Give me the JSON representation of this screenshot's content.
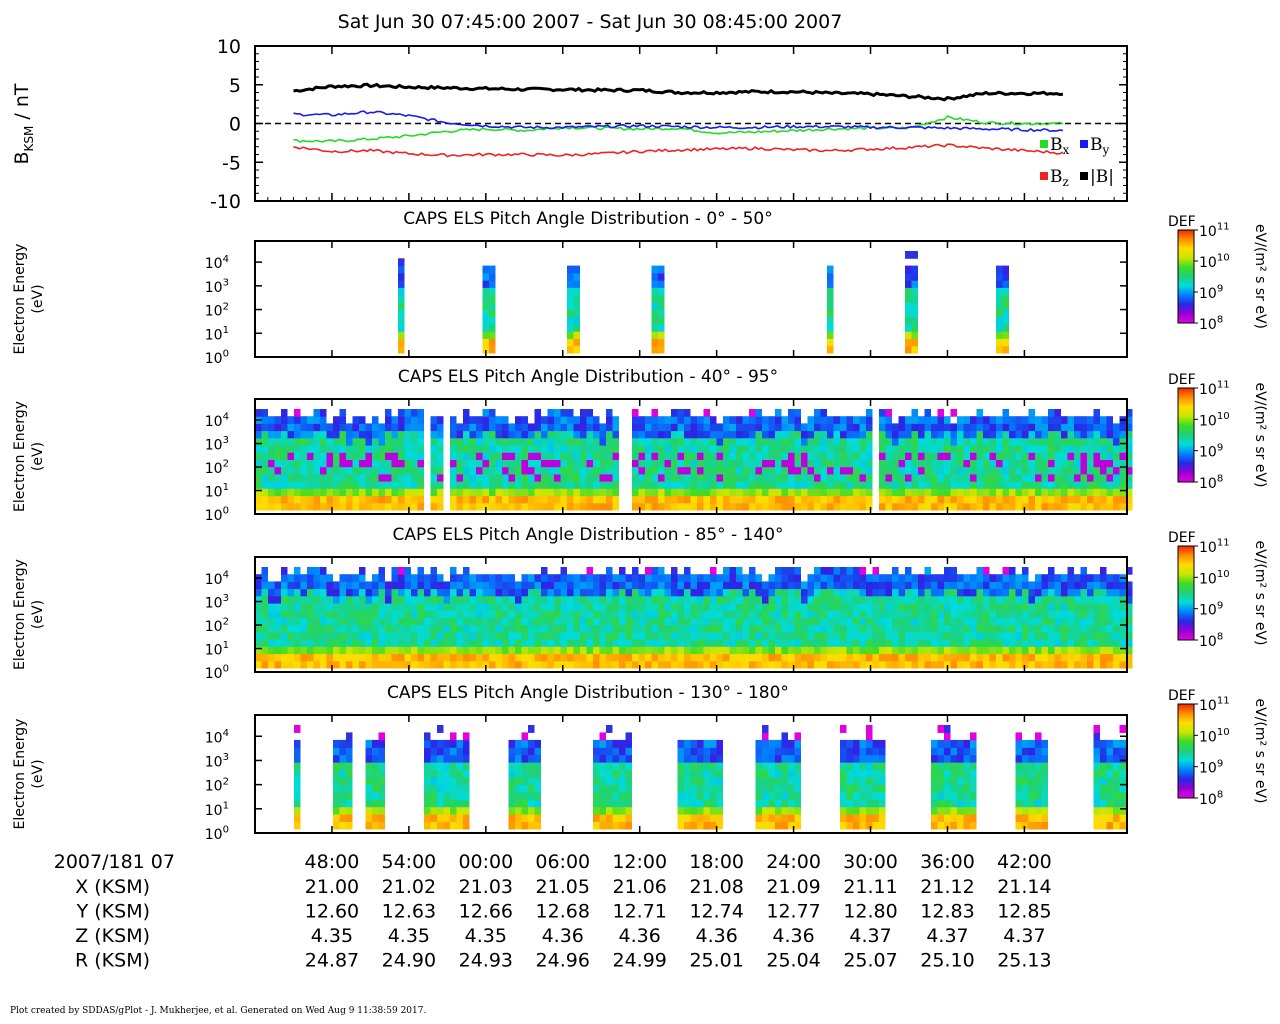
{
  "title": "Sat Jun 30 07:45:00 2007 - Sat Jun 30 08:45:00 2007",
  "footer": "Plot created by SDDAS/gPlot - J. Mukherjee, et al.  Generated on Wed Aug 9 11:38:59 2017.",
  "colors": {
    "bx": "#22dd22",
    "by": "#1a1aee",
    "bz": "#ee2222",
    "bmag": "#000000",
    "zero_line": "#000000"
  },
  "chart_data": [
    {
      "type": "line",
      "ylabel_main": "B",
      "ylabel_sub": "KSM",
      "ylabel_unit": " / nT",
      "ylim": [
        -10,
        10
      ],
      "y_ticks": [
        "10",
        "5",
        "0",
        "-5",
        "-10"
      ],
      "x_minutes": [
        0,
        3,
        6,
        9,
        12,
        15,
        18,
        21,
        24,
        27,
        30,
        33,
        36,
        39,
        42,
        45,
        48,
        51,
        54,
        57,
        60
      ],
      "series": [
        {
          "name": "|B|",
          "key": "bmag",
          "values": [
            4.2,
            4.8,
            4.9,
            4.7,
            4.6,
            4.5,
            4.4,
            4.4,
            4.3,
            4.3,
            4.0,
            4.0,
            4.1,
            4.1,
            3.9,
            3.8,
            3.5,
            3.2,
            3.9,
            3.9,
            3.9
          ]
        },
        {
          "name": "B",
          "sub": "x",
          "key": "bx",
          "values": [
            -2.2,
            -2.3,
            -2.0,
            -1.6,
            -1.0,
            -0.7,
            -0.9,
            -0.5,
            -0.6,
            -0.7,
            -0.6,
            -1.2,
            -1.1,
            -0.9,
            -0.7,
            -0.6,
            -0.6,
            0.8,
            0.1,
            0.0,
            0.0
          ]
        },
        {
          "name": "B",
          "sub": "y",
          "key": "by",
          "values": [
            1.2,
            1.1,
            1.5,
            1.0,
            0.1,
            -0.3,
            -0.5,
            -0.5,
            -0.4,
            -0.3,
            -0.4,
            -0.5,
            -0.5,
            -0.4,
            -0.4,
            -0.5,
            -0.5,
            -0.6,
            -0.7,
            -0.8,
            -0.9
          ]
        },
        {
          "name": "B",
          "sub": "z",
          "key": "bz",
          "values": [
            -3.0,
            -3.6,
            -3.5,
            -3.9,
            -4.1,
            -4.0,
            -4.0,
            -4.1,
            -3.9,
            -3.6,
            -3.4,
            -3.3,
            -3.2,
            -3.4,
            -3.5,
            -3.3,
            -3.1,
            -2.8,
            -3.2,
            -3.5,
            -3.8
          ]
        }
      ],
      "legend": [
        {
          "key": "bx",
          "text": "B",
          "sub": "x"
        },
        {
          "key": "by",
          "text": "B",
          "sub": "y"
        },
        {
          "key": "bz",
          "text": "B",
          "sub": "z"
        },
        {
          "key": "bmag",
          "text": "|B|",
          "sub": ""
        }
      ],
      "zero_line": "dashed"
    },
    {
      "type": "heatmap",
      "title": "CAPS ELS Pitch Angle Distribution - 0° - 50°",
      "ylabel": [
        "Electron Energy",
        "(eV)"
      ],
      "y_ticks": [
        "10",
        "10",
        "10",
        "10",
        "10"
      ],
      "y_exps": [
        "4",
        "3",
        "2",
        "1",
        "0"
      ],
      "coverage": "sparse",
      "bursts_minutes": [
        [
          8.0,
          8.6
        ],
        [
          14.7,
          15.3
        ],
        [
          21.3,
          21.9
        ],
        [
          27.9,
          28.6
        ],
        [
          41.3,
          41.9
        ],
        [
          47.5,
          48.4
        ],
        [
          54.7,
          55.6
        ]
      ],
      "colorbar": {
        "label": "DEF",
        "unit": "eV/(m² s sr eV)",
        "ticks": [
          "10",
          "10",
          "10",
          "10"
        ],
        "exps": [
          "11",
          "10",
          "9",
          "8"
        ]
      }
    },
    {
      "type": "heatmap",
      "title": "CAPS ELS Pitch Angle Distribution - 40° - 95°",
      "ylabel": [
        "Electron Energy",
        "(eV)"
      ],
      "y_ticks": [
        "10",
        "10",
        "10",
        "10",
        "10"
      ],
      "y_exps": [
        "4",
        "3",
        "2",
        "1",
        "0"
      ],
      "coverage": "full",
      "gaps_minutes": [
        [
          9.8,
          10.6
        ],
        [
          11.6,
          12.0
        ],
        [
          25.3,
          26.0
        ],
        [
          44.8,
          45.6
        ]
      ],
      "colorbar": {
        "label": "DEF",
        "unit": "eV/(m² s sr eV)",
        "ticks": [
          "10",
          "10",
          "10",
          "10"
        ],
        "exps": [
          "11",
          "10",
          "9",
          "8"
        ]
      }
    },
    {
      "type": "heatmap",
      "title": "CAPS ELS Pitch Angle Distribution - 85° - 140°",
      "ylabel": [
        "Electron Energy",
        "(eV)"
      ],
      "y_ticks": [
        "10",
        "10",
        "10",
        "10",
        "10"
      ],
      "y_exps": [
        "4",
        "3",
        "2",
        "1",
        "0"
      ],
      "coverage": "full",
      "gaps_minutes": [],
      "colorbar": {
        "label": "DEF",
        "unit": "eV/(m² s sr eV)",
        "ticks": [
          "10",
          "10",
          "10",
          "10"
        ],
        "exps": [
          "11",
          "10",
          "9",
          "8"
        ]
      }
    },
    {
      "type": "heatmap",
      "title": "CAPS ELS Pitch Angle Distribution - 130° - 180°",
      "ylabel": [
        "Electron Energy",
        "(eV)"
      ],
      "y_ticks": [
        "10",
        "10",
        "10",
        "10",
        "10"
      ],
      "y_exps": [
        "4",
        "3",
        "2",
        "1",
        "0"
      ],
      "coverage": "blocks",
      "bursts_minutes": [
        [
          0.0,
          0.2
        ],
        [
          2.7,
          4.2
        ],
        [
          5.2,
          7.0
        ],
        [
          9.8,
          13.5
        ],
        [
          16.5,
          19.2
        ],
        [
          23.2,
          26.2
        ],
        [
          29.5,
          33.2
        ],
        [
          36.0,
          39.3
        ],
        [
          42.5,
          46.0
        ],
        [
          49.5,
          53.0
        ],
        [
          56.2,
          58.5
        ],
        [
          62.2,
          64.6
        ]
      ],
      "colorbar": {
        "label": "DEF",
        "unit": "eV/(m² s sr eV)",
        "ticks": [
          "10",
          "10",
          "10",
          "10"
        ],
        "exps": [
          "11",
          "10",
          "9",
          "8"
        ]
      }
    }
  ],
  "time_axis": {
    "header": "2007/181 07",
    "ticks": [
      "48:00",
      "54:00",
      "00:00",
      "06:00",
      "12:00",
      "18:00",
      "24:00",
      "30:00",
      "36:00",
      "42:00"
    ],
    "tick_minutes": [
      3,
      9,
      15,
      21,
      27,
      33,
      39,
      45,
      51,
      57
    ],
    "rows": [
      {
        "label": "X (KSM)",
        "values": [
          "21.00",
          "21.02",
          "21.03",
          "21.05",
          "21.06",
          "21.08",
          "21.09",
          "21.11",
          "21.12",
          "21.14"
        ]
      },
      {
        "label": "Y (KSM)",
        "values": [
          "12.60",
          "12.63",
          "12.66",
          "12.68",
          "12.71",
          "12.74",
          "12.77",
          "12.80",
          "12.83",
          "12.85"
        ]
      },
      {
        "label": "Z (KSM)",
        "values": [
          "4.35",
          "4.35",
          "4.35",
          "4.36",
          "4.36",
          "4.36",
          "4.36",
          "4.37",
          "4.37",
          "4.37"
        ]
      },
      {
        "label": "R (KSM)",
        "values": [
          "24.87",
          "24.90",
          "24.93",
          "24.96",
          "24.99",
          "25.01",
          "25.04",
          "25.07",
          "25.10",
          "25.13"
        ]
      }
    ]
  }
}
